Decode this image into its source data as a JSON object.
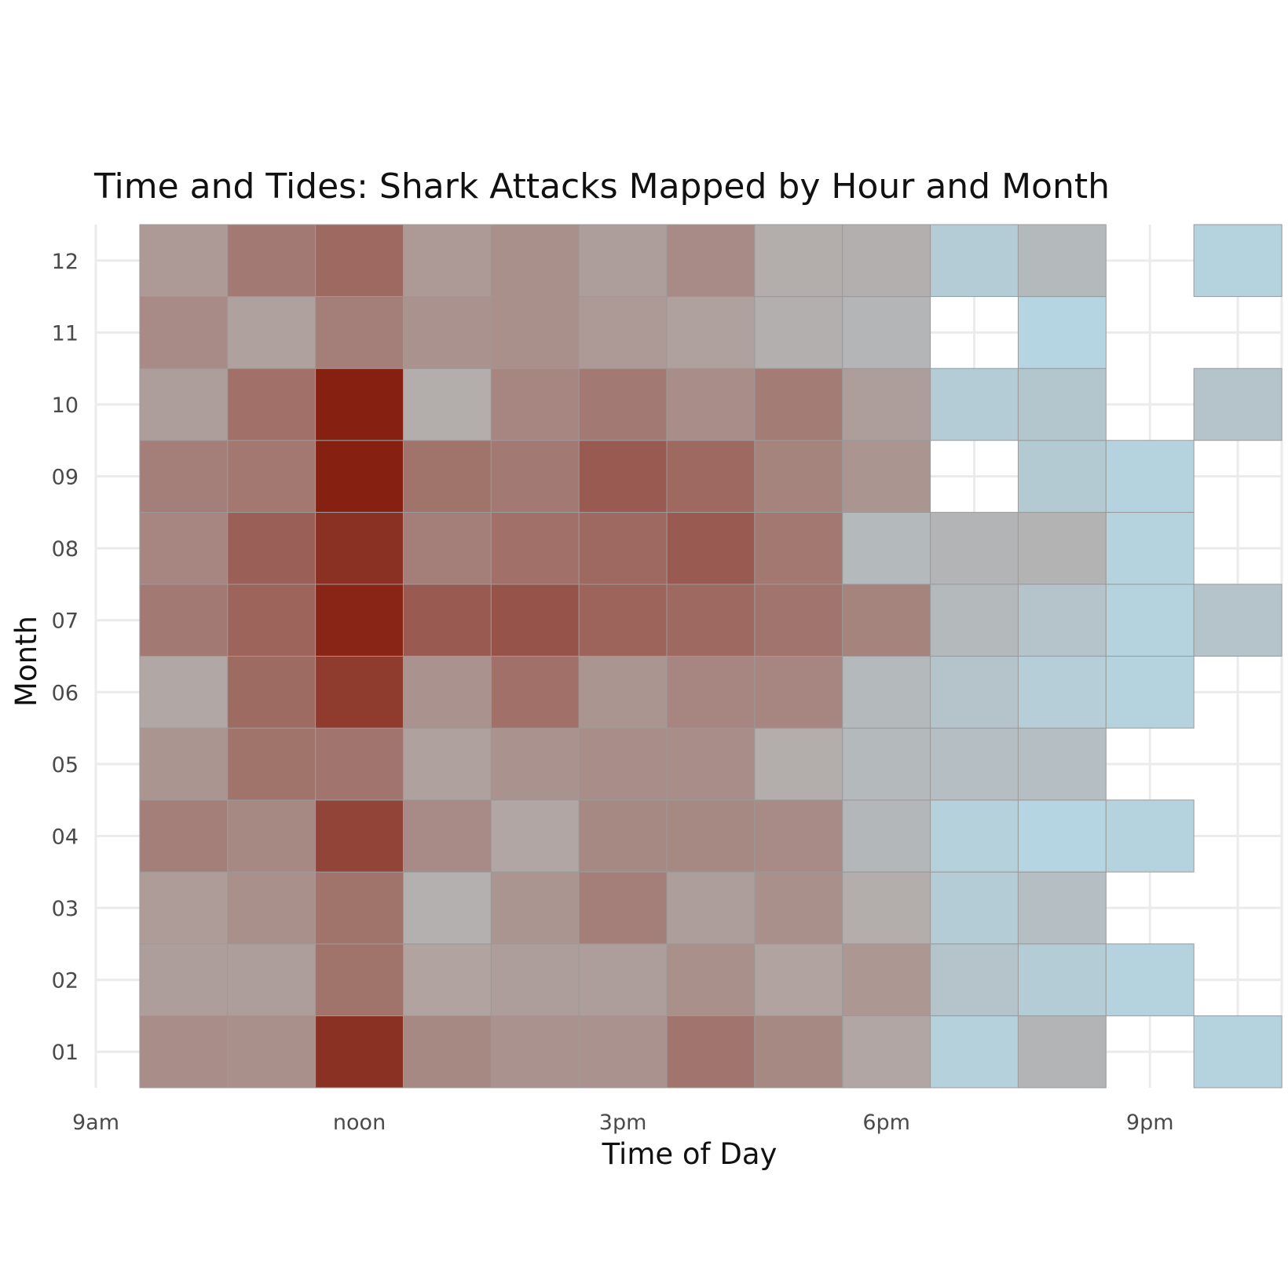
{
  "chart_data": {
    "type": "heatmap",
    "title": "Time and Tides: Shark Attacks Mapped by Hour and Month",
    "xlabel": "Time of Day",
    "ylabel": "Month",
    "x_hours": [
      9,
      10,
      11,
      12,
      13,
      14,
      15,
      16,
      17,
      18,
      19,
      20,
      21,
      22
    ],
    "x_ticks": [
      {
        "hour": 9,
        "label": "9am"
      },
      {
        "hour": 12,
        "label": "noon"
      },
      {
        "hour": 15,
        "label": "3pm"
      },
      {
        "hour": 18,
        "label": "6pm"
      },
      {
        "hour": 21,
        "label": "9pm"
      }
    ],
    "months": [
      "01",
      "02",
      "03",
      "04",
      "05",
      "06",
      "07",
      "08",
      "09",
      "10",
      "11",
      "12"
    ],
    "xlim": [
      9,
      22.5
    ],
    "grid": true,
    "colors": {
      "low": "#b5d8e6",
      "mid": "#b3adab",
      "high": "#862011",
      "cell_border": "#9a9a9a",
      "grid": "#ebebeb"
    },
    "color_scale_note_values": "relative intensity 0 (light blue) to 1 (dark red); null = no data",
    "cells": {
      "12": [
        null,
        0.5,
        0.63,
        0.7,
        0.5,
        0.54,
        0.48,
        0.56,
        0.42,
        0.4,
        0.12,
        0.3,
        null,
        0.05
      ],
      "11": [
        null,
        0.56,
        0.47,
        0.61,
        0.53,
        0.54,
        0.5,
        0.47,
        0.4,
        0.34,
        null,
        0.03,
        null,
        null
      ],
      "10": [
        null,
        0.48,
        0.67,
        1.0,
        0.41,
        0.58,
        0.63,
        0.55,
        0.62,
        0.48,
        0.12,
        0.18,
        null,
        0.2
      ],
      "09": [
        null,
        0.61,
        0.64,
        1.0,
        0.66,
        0.63,
        0.76,
        0.7,
        0.59,
        0.52,
        null,
        0.14,
        0.05,
        null
      ],
      "08": [
        null,
        0.58,
        0.74,
        0.93,
        0.61,
        0.67,
        0.7,
        0.76,
        0.64,
        0.3,
        0.35,
        0.36,
        0.05,
        null
      ],
      "07": [
        null,
        0.63,
        0.72,
        0.98,
        0.76,
        0.79,
        0.72,
        0.7,
        0.65,
        0.59,
        0.3,
        0.2,
        0.05,
        0.2
      ],
      "06": [
        null,
        0.44,
        0.69,
        0.89,
        0.53,
        0.67,
        0.52,
        0.58,
        0.58,
        0.3,
        0.2,
        0.1,
        0.05,
        null
      ],
      "05": [
        null,
        0.52,
        0.66,
        0.65,
        0.47,
        0.53,
        0.55,
        0.55,
        0.42,
        0.3,
        0.25,
        0.25,
        null,
        null
      ],
      "04": [
        null,
        0.61,
        0.57,
        0.85,
        0.56,
        0.45,
        0.57,
        0.57,
        0.56,
        0.32,
        0.07,
        0.03,
        0.05,
        null
      ],
      "03": [
        null,
        0.49,
        0.54,
        0.66,
        0.39,
        0.52,
        0.61,
        0.48,
        0.54,
        0.42,
        0.12,
        0.25,
        null,
        null
      ],
      "02": [
        null,
        0.48,
        0.48,
        0.66,
        0.46,
        0.48,
        0.48,
        0.54,
        0.46,
        0.51,
        0.2,
        0.12,
        0.05,
        null
      ],
      "01": [
        null,
        0.55,
        0.54,
        0.93,
        0.57,
        0.53,
        0.53,
        0.65,
        0.57,
        0.45,
        0.07,
        0.35,
        null,
        0.05
      ]
    }
  }
}
